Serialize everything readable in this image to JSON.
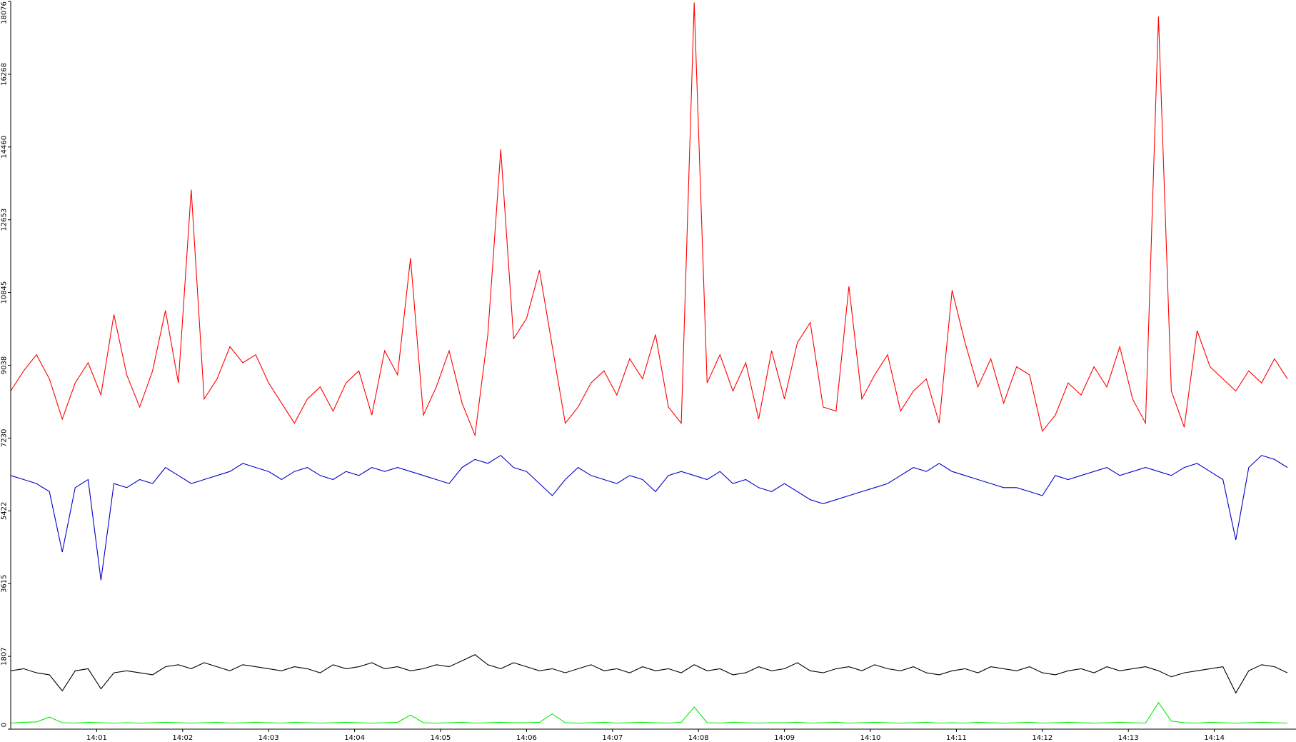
{
  "chart_data": {
    "type": "line",
    "x": [
      0,
      0.15,
      0.3,
      0.45,
      0.6,
      0.75,
      0.9,
      1.05,
      1.2,
      1.35,
      1.5,
      1.65,
      1.8,
      1.95,
      2.1,
      2.25,
      2.4,
      2.55,
      2.7,
      2.85,
      3,
      3.15,
      3.3,
      3.45,
      3.6,
      3.75,
      3.9,
      4.05,
      4.2,
      4.35,
      4.5,
      4.65,
      4.8,
      4.95,
      5.1,
      5.25,
      5.4,
      5.55,
      5.7,
      5.85,
      6,
      6.15,
      6.3,
      6.45,
      6.6,
      6.75,
      6.9,
      7.05,
      7.2,
      7.35,
      7.5,
      7.65,
      7.8,
      7.95,
      8.1,
      8.25,
      8.4,
      8.55,
      8.7,
      8.85,
      9,
      9.15,
      9.3,
      9.45,
      9.6,
      9.75,
      9.9,
      10.05,
      10.2,
      10.35,
      10.5,
      10.65,
      10.8,
      10.95,
      11.1,
      11.25,
      11.4,
      11.55,
      11.7,
      11.85,
      12,
      12.15,
      12.3,
      12.45,
      12.6,
      12.75,
      12.9,
      13.05,
      13.2,
      13.35,
      13.5,
      13.65,
      13.8,
      13.95,
      14.1,
      14.25,
      14.4,
      14.55,
      14.7,
      14.85
    ],
    "xlim": [
      0,
      14.95
    ],
    "xticks": [
      {
        "value": 1,
        "label": "14:01"
      },
      {
        "value": 2,
        "label": "14:02"
      },
      {
        "value": 3,
        "label": "14:03"
      },
      {
        "value": 4,
        "label": "14:04"
      },
      {
        "value": 5,
        "label": "14:05"
      },
      {
        "value": 6,
        "label": "14:06"
      },
      {
        "value": 7,
        "label": "14:07"
      },
      {
        "value": 8,
        "label": "14:08"
      },
      {
        "value": 9,
        "label": "14:09"
      },
      {
        "value": 10,
        "label": "14:10"
      },
      {
        "value": 11,
        "label": "14:11"
      },
      {
        "value": 12,
        "label": "14:12"
      },
      {
        "value": 13,
        "label": "14:13"
      },
      {
        "value": 14,
        "label": "14:14"
      }
    ],
    "ylim": [
      0,
      18076
    ],
    "yticks": [
      0,
      1807,
      3615,
      5422,
      7230,
      9038,
      10845,
      12653,
      14460,
      16268,
      18076
    ],
    "grid": false,
    "series": [
      {
        "color": "#ff0000",
        "values": [
          8400,
          8900,
          9300,
          8700,
          7700,
          8600,
          9100,
          8300,
          10300,
          8800,
          8000,
          8900,
          10400,
          8600,
          13400,
          8200,
          8700,
          9500,
          9100,
          9300,
          8600,
          8100,
          7600,
          8200,
          8500,
          7900,
          8600,
          8900,
          7800,
          9400,
          8800,
          11700,
          7800,
          8500,
          9400,
          8100,
          7300,
          9800,
          14400,
          9700,
          10200,
          11400,
          9500,
          7600,
          8000,
          8600,
          8900,
          8300,
          9200,
          8700,
          9800,
          8000,
          7600,
          18050,
          8600,
          9300,
          8400,
          9100,
          7700,
          9400,
          8200,
          9600,
          10100,
          8000,
          7900,
          11000,
          8200,
          8800,
          9300,
          7900,
          8400,
          8700,
          7600,
          10900,
          9600,
          8500,
          9200,
          8100,
          9000,
          8800,
          7400,
          7800,
          8600,
          8300,
          9000,
          8500,
          9500,
          8200,
          7600,
          17700,
          8400,
          7500,
          9900,
          9000,
          8700,
          8400,
          8900,
          8600,
          9200,
          8700
        ]
      },
      {
        "color": "#0000cc",
        "values": [
          6300,
          6200,
          6100,
          5900,
          4400,
          6000,
          6200,
          3700,
          6100,
          6000,
          6200,
          6100,
          6500,
          6300,
          6100,
          6200,
          6300,
          6400,
          6600,
          6500,
          6400,
          6200,
          6400,
          6500,
          6300,
          6200,
          6400,
          6300,
          6500,
          6400,
          6500,
          6400,
          6300,
          6200,
          6100,
          6500,
          6700,
          6600,
          6800,
          6500,
          6400,
          6100,
          5800,
          6200,
          6500,
          6300,
          6200,
          6100,
          6300,
          6200,
          5900,
          6300,
          6400,
          6300,
          6200,
          6400,
          6100,
          6200,
          6000,
          5900,
          6100,
          5900,
          5700,
          5600,
          5700,
          5800,
          5900,
          6000,
          6100,
          6300,
          6500,
          6400,
          6600,
          6400,
          6300,
          6200,
          6100,
          6000,
          6000,
          5900,
          5800,
          6300,
          6200,
          6300,
          6400,
          6500,
          6300,
          6400,
          6500,
          6400,
          6300,
          6500,
          6600,
          6400,
          6200,
          4700,
          6500,
          6800,
          6700,
          6500
        ]
      },
      {
        "color": "#000000",
        "values": [
          1450,
          1500,
          1400,
          1350,
          950,
          1450,
          1500,
          1000,
          1400,
          1450,
          1400,
          1350,
          1550,
          1600,
          1500,
          1650,
          1550,
          1450,
          1600,
          1550,
          1500,
          1450,
          1550,
          1500,
          1400,
          1600,
          1500,
          1550,
          1650,
          1500,
          1550,
          1450,
          1500,
          1600,
          1550,
          1700,
          1850,
          1600,
          1500,
          1650,
          1550,
          1450,
          1500,
          1400,
          1500,
          1600,
          1450,
          1500,
          1400,
          1550,
          1450,
          1500,
          1400,
          1600,
          1450,
          1500,
          1350,
          1400,
          1550,
          1450,
          1500,
          1650,
          1450,
          1400,
          1500,
          1550,
          1450,
          1600,
          1500,
          1450,
          1550,
          1400,
          1350,
          1450,
          1500,
          1400,
          1550,
          1500,
          1450,
          1550,
          1400,
          1350,
          1450,
          1500,
          1400,
          1550,
          1450,
          1500,
          1550,
          1450,
          1300,
          1400,
          1450,
          1500,
          1550,
          900,
          1450,
          1600,
          1550,
          1400
        ]
      },
      {
        "color": "#00ee00",
        "values": [
          150,
          170,
          180,
          300,
          160,
          150,
          170,
          160,
          150,
          160,
          150,
          160,
          170,
          160,
          150,
          160,
          170,
          150,
          160,
          170,
          160,
          150,
          170,
          160,
          150,
          160,
          170,
          160,
          150,
          160,
          170,
          350,
          160,
          150,
          160,
          170,
          150,
          160,
          170,
          160,
          160,
          170,
          380,
          160,
          150,
          160,
          170,
          150,
          160,
          170,
          160,
          150,
          170,
          550,
          160,
          150,
          170,
          160,
          150,
          160,
          160,
          170,
          150,
          160,
          170,
          150,
          160,
          170,
          160,
          150,
          160,
          170,
          150,
          160,
          150,
          170,
          160,
          150,
          160,
          170,
          150,
          160,
          170,
          160,
          150,
          160,
          170,
          160,
          150,
          660,
          200,
          160,
          150,
          170,
          160,
          150,
          160,
          170,
          160,
          150
        ]
      }
    ]
  }
}
